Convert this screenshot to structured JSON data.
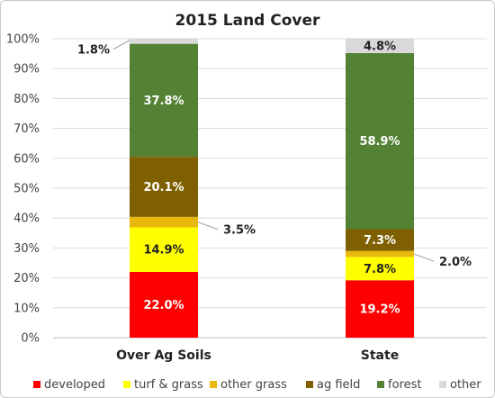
{
  "chart_data": {
    "type": "bar",
    "stacked": true,
    "percent": true,
    "title": "2015 Land Cover",
    "categories": [
      "Over Ag Soils",
      "State"
    ],
    "ylim": [
      0,
      100
    ],
    "yticks": [
      "0%",
      "10%",
      "20%",
      "30%",
      "40%",
      "50%",
      "60%",
      "70%",
      "80%",
      "90%",
      "100%"
    ],
    "grid": true,
    "legend_position": "bottom",
    "series": [
      {
        "name": "developed",
        "color": "#ff0000",
        "values": [
          22.0,
          19.2
        ],
        "labels": [
          "22.0%",
          "19.2%"
        ],
        "label_color": "#ffffff"
      },
      {
        "name": "turf & grass",
        "color": "#ffff00",
        "values": [
          14.9,
          7.8
        ],
        "labels": [
          "14.9%",
          "7.8%"
        ],
        "label_color": "#222222"
      },
      {
        "name": "other grass",
        "color": "#e8b90c",
        "values": [
          3.5,
          2.0
        ],
        "labels": [
          "3.5%",
          "2.0%"
        ],
        "label_color": "#222222",
        "label_outside": true
      },
      {
        "name": "ag field",
        "color": "#7f6000",
        "values": [
          20.1,
          7.3
        ],
        "labels": [
          "20.1%",
          "7.3%"
        ],
        "label_color": "#ffffff"
      },
      {
        "name": "forest",
        "color": "#548235",
        "values": [
          37.8,
          58.9
        ],
        "labels": [
          "37.8%",
          "58.9%"
        ],
        "label_color": "#ffffff"
      },
      {
        "name": "other",
        "color": "#d9d9d9",
        "values": [
          1.8,
          4.8
        ],
        "labels": [
          "1.8%",
          "4.8%"
        ],
        "label_color": "#222222"
      }
    ]
  }
}
